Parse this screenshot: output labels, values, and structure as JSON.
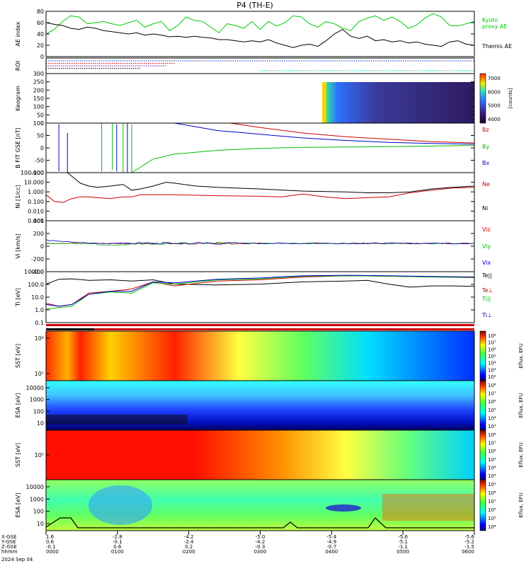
{
  "chart_data": {
    "type": "line",
    "title": "P4 (TH-E)",
    "date": "2024 Sep 04",
    "time_ticks": [
      "0000",
      "0100",
      "0200",
      "0300",
      "0400",
      "0500",
      "0600"
    ],
    "ephemeris": {
      "labels": [
        "X-GSE",
        "Y-GSE",
        "Z-GSE",
        "hhmm"
      ],
      "x_gse": [
        "1.6",
        "-2.8",
        "-4.2",
        "-5.0",
        "-5.4",
        "-5.6",
        "-5.6"
      ],
      "y_gse": [
        "0.6",
        "-0.1",
        "-2.4",
        "-4.2",
        "-4.9",
        "-5.1",
        "-5.2"
      ],
      "z_gse": [
        "-0.1",
        "0.6",
        "0.2",
        "-0.3",
        "-0.7",
        "-1.1",
        "-1.5"
      ]
    },
    "panels": [
      {
        "id": "ae",
        "ylabel": "AE index",
        "ylim": [
          0,
          80
        ],
        "yticks": [
          "80",
          "60",
          "40",
          "20",
          "0"
        ],
        "series": [
          {
            "name": "Kyoto proxy AE",
            "color": "#00cc00",
            "values": [
              40,
              48,
              62,
              72,
              70,
              58,
              60,
              62,
              58,
              55,
              60,
              64,
              52,
              58,
              62,
              46,
              55,
              70,
              64,
              62,
              52,
              42,
              58,
              55,
              50,
              62,
              48,
              62,
              54,
              60,
              72,
              70,
              58,
              52,
              62,
              58,
              50,
              46,
              62,
              68,
              72,
              64,
              70,
              62,
              50,
              56,
              68,
              76,
              70,
              55,
              54,
              58,
              62
            ]
          },
          {
            "name": "Themis AE",
            "color": "#000000",
            "values": [
              60,
              57,
              55,
              50,
              48,
              52,
              50,
              46,
              44,
              42,
              40,
              42,
              38,
              40,
              38,
              35,
              36,
              34,
              36,
              34,
              33,
              30,
              30,
              28,
              26,
              28,
              26,
              30,
              24,
              20,
              16,
              20,
              22,
              18,
              28,
              40,
              48,
              36,
              32,
              36,
              28,
              30,
              26,
              28,
              24,
              26,
              22,
              20,
              18,
              26,
              28,
              22,
              20
            ]
          }
        ]
      },
      {
        "id": "roi",
        "ylabel": "ROI",
        "rows": [
          {
            "color": "#0033cc",
            "from": 0.0,
            "to": 1.0
          },
          {
            "color": "#cc0000",
            "from": 0.0,
            "to": 0.3
          },
          {
            "color": "#7700aa",
            "from": 0.0,
            "to": 0.28
          },
          {
            "color": "#000000",
            "from": 0.0,
            "to": 0.22
          },
          {
            "color": "#00ccaa",
            "from": 0.5,
            "to": 1.0
          }
        ]
      },
      {
        "id": "keogram",
        "ylabel": "Keogram",
        "ylim": [
          0,
          300
        ],
        "yticks": [
          "300",
          "250",
          "200",
          "150",
          "100",
          "50",
          "0"
        ],
        "colorbar_label": "[counts]",
        "colorbar_ticks": [
          "7000",
          "6000",
          "5000",
          "4000"
        ]
      },
      {
        "id": "bfield",
        "ylabel": "B FIT GSE [nT]",
        "ylim": [
          -100,
          100
        ],
        "yticks": [
          "100",
          "50",
          "0",
          "-50",
          "-100"
        ],
        "series": [
          {
            "name": "Bz",
            "color": "#cc0000",
            "x": [
              0.43,
              0.5,
              0.6,
              0.7,
              0.8,
              0.9,
              1.0
            ],
            "values": [
              100,
              82,
              60,
              45,
              35,
              25,
              20
            ]
          },
          {
            "name": "By",
            "color": "#00bb00",
            "x": [
              0.2,
              0.25,
              0.3,
              0.4,
              0.5,
              0.6,
              0.8,
              1.0
            ],
            "values": [
              -100,
              -45,
              -25,
              -10,
              -2,
              2,
              5,
              10
            ]
          },
          {
            "name": "Bx",
            "color": "#0000cc",
            "x": [
              0.3,
              0.4,
              0.5,
              0.6,
              0.7,
              0.8,
              0.9,
              1.0
            ],
            "values": [
              100,
              70,
              55,
              40,
              30,
              22,
              18,
              15
            ]
          }
        ],
        "spikes": [
          {
            "color": "#0000cc",
            "x": 0.03,
            "top": 95,
            "bottom": -95
          },
          {
            "color": "#0000cc",
            "x": 0.05,
            "top": 60,
            "bottom": -100
          },
          {
            "color": "#00bb00",
            "x": 0.13,
            "top": 100,
            "bottom": -95
          },
          {
            "color": "#00bb00",
            "x": 0.155,
            "top": 100,
            "bottom": -90
          },
          {
            "color": "#0000cc",
            "x": 0.165,
            "top": 95,
            "bottom": -95
          },
          {
            "color": "#00bb00",
            "x": 0.18,
            "top": 100,
            "bottom": -100
          },
          {
            "color": "#0000cc",
            "x": 0.19,
            "top": 100,
            "bottom": -100
          },
          {
            "color": "#00bb00",
            "x": 0.2,
            "top": 95,
            "bottom": -100
          }
        ]
      },
      {
        "id": "density",
        "ylabel": "Ni [1/cc]",
        "ylim": [
          0.001,
          100
        ],
        "log": true,
        "yticks": [
          "100.000",
          "10.000",
          "1.000",
          "0.100",
          "0.010",
          "0.001"
        ],
        "series": [
          {
            "name": "Ne",
            "color": "#cc0000",
            "x": [
              0,
              0.02,
              0.04,
              0.06,
              0.08,
              0.1,
              0.12,
              0.15,
              0.18,
              0.2,
              0.22,
              0.3,
              0.4,
              0.5,
              0.55,
              0.6,
              0.65,
              0.7,
              0.75,
              0.8,
              0.85,
              0.9,
              0.95,
              1.0
            ],
            "values": [
              0.5,
              0.1,
              0.08,
              0.2,
              0.3,
              0.3,
              0.25,
              0.2,
              0.3,
              0.3,
              0.5,
              0.5,
              0.4,
              0.35,
              0.3,
              0.6,
              0.3,
              0.2,
              0.25,
              0.3,
              0.8,
              1.5,
              2.5,
              3
            ]
          },
          {
            "name": "Ni",
            "color": "#000000",
            "x": [
              0.05,
              0.08,
              0.1,
              0.12,
              0.15,
              0.18,
              0.2,
              0.22,
              0.25,
              0.28,
              0.3,
              0.35,
              0.4,
              0.5,
              0.6,
              0.7,
              0.75,
              0.8,
              0.85,
              0.9,
              0.95,
              1.0
            ],
            "values": [
              100,
              8,
              4,
              3,
              4,
              6,
              1.5,
              2,
              4,
              10,
              8,
              4,
              3,
              2,
              1.2,
              1,
              0.8,
              0.8,
              1,
              2,
              3,
              4
            ]
          }
        ]
      },
      {
        "id": "velocity",
        "ylabel": "Vi [km/s]",
        "ylim": [
          -500,
          400
        ],
        "yticks": [
          "400",
          "200",
          "0",
          "-200",
          "-400"
        ],
        "series": [
          {
            "name": "Viz",
            "color": "#cc0000"
          },
          {
            "name": "Viy",
            "color": "#00bb00"
          },
          {
            "name": "Vix",
            "color": "#0000cc"
          }
        ]
      },
      {
        "id": "temperature",
        "ylabel": "Ti [eV]",
        "log": true,
        "ylim": [
          0.05,
          5000
        ],
        "yticks": [
          "1000.0",
          "100.0",
          "10.0",
          "1.0",
          "0.1"
        ],
        "series": [
          {
            "name": "Te||",
            "color": "#000000",
            "x": [
              0,
              0.03,
              0.06,
              0.1,
              0.15,
              0.2,
              0.25,
              0.3,
              0.4,
              0.5,
              0.6,
              0.7,
              0.75,
              0.8,
              0.85,
              0.9,
              0.95,
              1.0
            ],
            "values": [
              300,
              900,
              1000,
              700,
              800,
              600,
              800,
              300,
              250,
              300,
              500,
              600,
              700,
              300,
              150,
              200,
              200,
              180
            ]
          },
          {
            "name": "Te⊥",
            "color": "#cc0000",
            "x": [
              0,
              0.03,
              0.06,
              0.1,
              0.15,
              0.2,
              0.25,
              0.3,
              0.4,
              0.5,
              0.6,
              0.7,
              0.8,
              0.9,
              1.0
            ],
            "values": [
              4,
              2,
              3,
              40,
              60,
              100,
              500,
              200,
              600,
              800,
              1500,
              2000,
              1800,
              1500,
              1300
            ]
          },
          {
            "name": "Ti||",
            "color": "#00bb00",
            "x": [
              0,
              0.03,
              0.06,
              0.1,
              0.15,
              0.2,
              0.25,
              0.3,
              0.4,
              0.5,
              0.6,
              0.7,
              0.8,
              0.9,
              1.0
            ],
            "values": [
              1,
              1.5,
              2,
              30,
              50,
              40,
              400,
              300,
              800,
              1000,
              1800,
              2000,
              1800,
              1500,
              1400
            ]
          },
          {
            "name": "Ti⊥",
            "color": "#0000cc",
            "x": [
              0,
              0.03,
              0.06,
              0.1,
              0.15,
              0.2,
              0.25,
              0.3,
              0.4,
              0.5,
              0.6,
              0.7,
              0.8,
              0.9,
              1.0
            ],
            "values": [
              3,
              2,
              3,
              30,
              60,
              60,
              500,
              400,
              900,
              1200,
              2000,
              2200,
              2000,
              1700,
              1500
            ]
          }
        ]
      },
      {
        "id": "sst_i",
        "ylabel": "SST [eV]",
        "yticks": [
          "10⁶",
          "10⁵"
        ],
        "colorbar_label": "Eflux, EFU",
        "colorbar_ticks": [
          "10⁸",
          "10⁷",
          "10⁶",
          "10⁵",
          "10⁴",
          "10³",
          "10²"
        ]
      },
      {
        "id": "esa_i",
        "ylabel": "ESA [eV]",
        "yticks": [
          "10000",
          "1000",
          "100",
          "10"
        ],
        "colorbar_label": "Eflux, EFU",
        "colorbar_ticks": [
          "10⁸",
          "10⁷",
          "10⁶",
          "10⁵",
          "10⁴",
          "10³"
        ]
      },
      {
        "id": "sst_e",
        "ylabel": "SST [eV]",
        "yticks": [
          "10⁵"
        ],
        "colorbar_label": "Eflux, EFU",
        "colorbar_ticks": [
          "10⁸",
          "10⁷",
          "10⁶",
          "10⁵",
          "10⁴",
          "10³"
        ]
      },
      {
        "id": "esa_e",
        "ylabel": "ESA [eV]",
        "yticks": [
          "10000",
          "1000",
          "100",
          "10"
        ],
        "colorbar_label": "Eflux, EFU",
        "colorbar_ticks": [
          "10⁹",
          "10⁸",
          "10⁷",
          "10⁶",
          "10⁵",
          "10⁴"
        ]
      }
    ]
  }
}
